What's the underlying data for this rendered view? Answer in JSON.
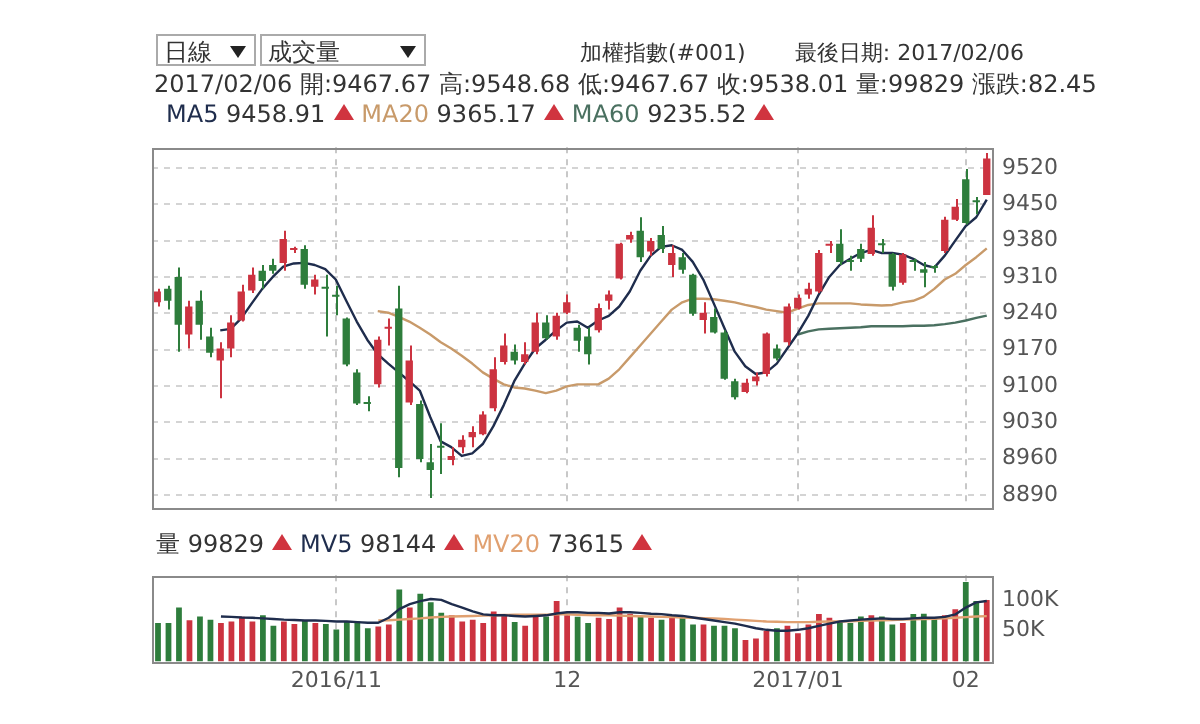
{
  "chart_data": [
    {
      "type": "candlestick",
      "annotations": [
        "日線",
        "成交量",
        "加權指數(#001)",
        "最後日期: 2017/02/06",
        "2017/02/06 開:9467.67 高:9548.68 低:9467.67 收:9538.01 量:99829 漲跌:82.45",
        "9458.91",
        "9365.17",
        "9235.52"
      ],
      "categories": [
        null,
        null,
        null,
        null,
        null,
        null,
        null,
        null,
        null,
        null,
        null,
        null,
        null,
        null,
        null,
        null,
        null,
        "2016/11",
        null,
        null,
        null,
        null,
        null,
        null,
        null,
        null,
        null,
        null,
        null,
        null,
        null,
        null,
        null,
        null,
        null,
        null,
        null,
        null,
        null,
        "12",
        null,
        null,
        null,
        null,
        null,
        null,
        null,
        null,
        null,
        null,
        null,
        null,
        null,
        null,
        null,
        null,
        null,
        null,
        null,
        null,
        null,
        "2017/01",
        null,
        null,
        null,
        null,
        null,
        null,
        null,
        null,
        null,
        null,
        null,
        null,
        null,
        null,
        null,
        "02",
        null,
        null
      ],
      "ohlc": [
        [
          9261,
          9287,
          9253,
          9282
        ],
        [
          9287,
          9293,
          9247,
          9264
        ],
        [
          9310,
          9328,
          9166,
          9218
        ],
        [
          9199,
          9264,
          9172,
          9253
        ],
        [
          9264,
          9284,
          9189,
          9218
        ],
        [
          9195,
          9212,
          9155,
          9164
        ],
        [
          9149,
          9184,
          9076,
          9172
        ],
        [
          9172,
          9236,
          9155,
          9222
        ],
        [
          9226,
          9295,
          9224,
          9282
        ],
        [
          9284,
          9328,
          9279,
          9314
        ],
        [
          9322,
          9333,
          9287,
          9302
        ],
        [
          9333,
          9345,
          9316,
          9322
        ],
        [
          9337,
          9399,
          9322,
          9383
        ],
        [
          9362,
          9368,
          9356,
          9363
        ],
        [
          9364,
          9371,
          9287,
          9295
        ],
        [
          9291,
          9314,
          9276,
          9305
        ],
        [
          9288,
          9314,
          9195,
          9287
        ],
        [
          9273,
          9293,
          9236,
          9272
        ],
        [
          9230,
          9232,
          9138,
          9141
        ],
        [
          9126,
          9132,
          9063,
          9066
        ],
        [
          9066,
          9080,
          9051,
          9065
        ],
        [
          9103,
          9195,
          9097,
          9189
        ],
        [
          9210,
          9230,
          9178,
          9213
        ],
        [
          9249,
          9293,
          8924,
          8942
        ],
        [
          9068,
          9178,
          9063,
          9149
        ],
        [
          9065,
          9072,
          8953,
          8959
        ],
        [
          8953,
          8988,
          8884,
          8938
        ],
        [
          8982,
          9028,
          8930,
          8981
        ],
        [
          8957,
          8982,
          8947,
          8965
        ],
        [
          8982,
          9005,
          8970,
          8996
        ],
        [
          9001,
          9022,
          8982,
          9011
        ],
        [
          9007,
          9051,
          9005,
          9045
        ],
        [
          9057,
          9155,
          9051,
          9132
        ],
        [
          9146,
          9201,
          9141,
          9178
        ],
        [
          9166,
          9180,
          9141,
          9149
        ],
        [
          9146,
          9184,
          9141,
          9161
        ],
        [
          9166,
          9241,
          9161,
          9222
        ],
        [
          9222,
          9236,
          9189,
          9192
        ],
        [
          9195,
          9241,
          9189,
          9235
        ],
        [
          9241,
          9276,
          9238,
          9261
        ],
        [
          9212,
          9218,
          9166,
          9187
        ],
        [
          9195,
          9212,
          9141,
          9161
        ],
        [
          9207,
          9259,
          9203,
          9250
        ],
        [
          9264,
          9284,
          9247,
          9276
        ],
        [
          9307,
          9376,
          9305,
          9374
        ],
        [
          9382,
          9397,
          9376,
          9391
        ],
        [
          9399,
          9425,
          9339,
          9348
        ],
        [
          9359,
          9385,
          9351,
          9379
        ],
        [
          9391,
          9408,
          9356,
          9364
        ],
        [
          9333,
          9371,
          9310,
          9356
        ],
        [
          9348,
          9356,
          9316,
          9324
        ],
        [
          9314,
          9316,
          9235,
          9239
        ],
        [
          9227,
          9261,
          9201,
          9241
        ],
        [
          9233,
          9249,
          9201,
          9203
        ],
        [
          9203,
          9207,
          9112,
          9114
        ],
        [
          9109,
          9114,
          9074,
          9078
        ],
        [
          9088,
          9114,
          9086,
          9106
        ],
        [
          9109,
          9126,
          9101,
          9118
        ],
        [
          9123,
          9203,
          9118,
          9201
        ],
        [
          9172,
          9180,
          9149,
          9153
        ],
        [
          9184,
          9259,
          9178,
          9253
        ],
        [
          9249,
          9276,
          9247,
          9270
        ],
        [
          9276,
          9299,
          9268,
          9287
        ],
        [
          9282,
          9362,
          9279,
          9356
        ],
        [
          9370,
          9379,
          9356,
          9371
        ],
        [
          9374,
          9402,
          9333,
          9339
        ],
        [
          9342,
          9351,
          9322,
          9339
        ],
        [
          9364,
          9374,
          9339,
          9345
        ],
        [
          9354,
          9429,
          9351,
          9405
        ],
        [
          9372,
          9383,
          9356,
          9371
        ],
        [
          9354,
          9356,
          9284,
          9291
        ],
        [
          9299,
          9356,
          9295,
          9353
        ],
        [
          9340,
          9345,
          9322,
          9339
        ],
        [
          9325,
          9339,
          9290,
          9318
        ],
        [
          9328,
          9333,
          9318,
          9327
        ],
        [
          9360,
          9426,
          9356,
          9420
        ],
        [
          9420,
          9460,
          9418,
          9445
        ],
        [
          9498,
          9518,
          9411,
          9414
        ],
        [
          9455,
          9464,
          9431,
          9454
        ],
        [
          9467.67,
          9548.68,
          9467.67,
          9538.01
        ]
      ],
      "colors": [
        "#cc3340",
        "#2e7d3c",
        "#2e7d3c",
        "#cc3340",
        "#2e7d3c",
        "#2e7d3c",
        "#cc3340",
        "#cc3340",
        "#cc3340",
        "#cc3340",
        "#2e7d3c",
        "#2e7d3c",
        "#cc3340",
        "#cc3340",
        "#2e7d3c",
        "#cc3340",
        "#2e7d3c",
        "#2e7d3c",
        "#2e7d3c",
        "#2e7d3c",
        "#2e7d3c",
        "#cc3340",
        "#cc3340",
        "#2e7d3c",
        "#cc3340",
        "#2e7d3c",
        "#2e7d3c",
        "#2e7d3c",
        "#cc3340",
        "#cc3340",
        "#cc3340",
        "#cc3340",
        "#cc3340",
        "#cc3340",
        "#2e7d3c",
        "#cc3340",
        "#cc3340",
        "#2e7d3c",
        "#cc3340",
        "#cc3340",
        "#2e7d3c",
        "#2e7d3c",
        "#cc3340",
        "#cc3340",
        "#cc3340",
        "#cc3340",
        "#2e7d3c",
        "#cc3340",
        "#2e7d3c",
        "#cc3340",
        "#2e7d3c",
        "#2e7d3c",
        "#cc3340",
        "#2e7d3c",
        "#2e7d3c",
        "#2e7d3c",
        "#cc3340",
        "#cc3340",
        "#cc3340",
        "#2e7d3c",
        "#cc3340",
        "#cc3340",
        "#cc3340",
        "#cc3340",
        "#cc3340",
        "#2e7d3c",
        "#2e7d3c",
        "#2e7d3c",
        "#cc3340",
        "#2e7d3c",
        "#2e7d3c",
        "#cc3340",
        "#2e7d3c",
        "#2e7d3c",
        "#2e7d3c",
        "#cc3340",
        "#cc3340",
        "#2e7d3c",
        "#2e7d3c",
        "#cc3340"
      ],
      "series": [
        {
          "type": "line",
          "name": "MA5",
          "color": "#1f2d4d",
          "values": [
            null,
            null,
            null,
            null,
            null,
            null,
            9207,
            9210,
            9230,
            9259,
            9287,
            9310,
            9330,
            9336,
            9337,
            9333,
            9325,
            9305,
            9264,
            9224,
            9189,
            9161,
            9143,
            9126,
            9109,
            9091,
            9040,
            8993,
            8982,
            8965,
            8970,
            8988,
            9022,
            9063,
            9109,
            9143,
            9172,
            9189,
            9207,
            9222,
            9224,
            9212,
            9226,
            9235,
            9253,
            9282,
            9322,
            9351,
            9368,
            9371,
            9362,
            9339,
            9305,
            9259,
            9212,
            9166,
            9138,
            9123,
            9126,
            9143,
            9172,
            9201,
            9235,
            9276,
            9310,
            9333,
            9345,
            9356,
            9362,
            9356,
            9356,
            9353,
            9345,
            9333,
            9328,
            9351,
            9380,
            9408,
            9425,
            9458.91
          ]
        },
        {
          "type": "line",
          "name": "MA20",
          "color": "#c89a6a",
          "values": [
            null,
            null,
            null,
            null,
            null,
            null,
            null,
            null,
            null,
            null,
            null,
            null,
            null,
            null,
            null,
            null,
            null,
            null,
            null,
            null,
            null,
            9244,
            9241,
            9233,
            9224,
            9212,
            9199,
            9184,
            9172,
            9158,
            9143,
            9126,
            9114,
            9103,
            9097,
            9095,
            9091,
            9086,
            9091,
            9099,
            9103,
            9103,
            9103,
            9114,
            9132,
            9155,
            9178,
            9201,
            9224,
            9247,
            9261,
            9268,
            9268,
            9267,
            9264,
            9261,
            9256,
            9252,
            9247,
            9244,
            9241,
            9249,
            9256,
            9259,
            9259,
            9259,
            9259,
            9257,
            9256,
            9255,
            9256,
            9261,
            9264,
            9272,
            9287,
            9305,
            9316,
            9333,
            9348,
            9365.17
          ]
        },
        {
          "type": "line",
          "name": "MA60",
          "color": "#4a7060",
          "values": [
            null,
            null,
            null,
            null,
            null,
            null,
            null,
            null,
            null,
            null,
            null,
            null,
            null,
            null,
            null,
            null,
            null,
            null,
            null,
            null,
            null,
            null,
            null,
            null,
            null,
            null,
            null,
            null,
            null,
            null,
            null,
            null,
            null,
            null,
            null,
            null,
            null,
            null,
            null,
            null,
            null,
            null,
            null,
            null,
            null,
            null,
            null,
            null,
            null,
            null,
            null,
            null,
            null,
            null,
            null,
            null,
            null,
            null,
            null,
            null,
            null,
            9199,
            9205,
            9209,
            9210,
            9211,
            9212,
            9213,
            9215,
            9215,
            9215,
            9215,
            9216,
            9216,
            9217,
            9219,
            9222,
            9226,
            9231,
            9235.52
          ]
        }
      ],
      "ylim": [
        8867,
        9560
      ],
      "yticks": [
        8890,
        8960,
        9030,
        9100,
        9170,
        9240,
        9310,
        9380,
        9450,
        9520
      ],
      "grid": true,
      "legend": "top left",
      "tick_labels": "y",
      "marker": "none"
    },
    {
      "type": "bar",
      "categories": [
        null,
        null,
        null,
        null,
        null,
        null,
        null,
        null,
        null,
        null,
        null,
        null,
        null,
        null,
        null,
        null,
        null,
        "2016/11",
        null,
        null,
        null,
        null,
        null,
        null,
        null,
        null,
        null,
        null,
        null,
        null,
        null,
        null,
        null,
        null,
        null,
        null,
        null,
        null,
        null,
        "12",
        null,
        null,
        null,
        null,
        null,
        null,
        null,
        null,
        null,
        null,
        null,
        null,
        null,
        null,
        null,
        null,
        null,
        null,
        null,
        null,
        null,
        "2017/01",
        null,
        null,
        null,
        null,
        null,
        null,
        null,
        null,
        null,
        null,
        null,
        null,
        null,
        null,
        null,
        "02",
        null,
        null
      ],
      "series": [
        {
          "type": "bar",
          "colors": [
            "#2e7d3c",
            "#2e7d3c",
            "#2e7d3c",
            "#cc3340",
            "#2e7d3c",
            "#2e7d3c",
            "#cc3340",
            "#cc3340",
            "#cc3340",
            "#cc3340",
            "#2e7d3c",
            "#2e7d3c",
            "#cc3340",
            "#cc3340",
            "#2e7d3c",
            "#cc3340",
            "#2e7d3c",
            "#2e7d3c",
            "#2e7d3c",
            "#2e7d3c",
            "#2e7d3c",
            "#cc3340",
            "#cc3340",
            "#2e7d3c",
            "#cc3340",
            "#2e7d3c",
            "#2e7d3c",
            "#2e7d3c",
            "#cc3340",
            "#cc3340",
            "#cc3340",
            "#cc3340",
            "#cc3340",
            "#cc3340",
            "#2e7d3c",
            "#cc3340",
            "#cc3340",
            "#2e7d3c",
            "#cc3340",
            "#cc3340",
            "#2e7d3c",
            "#2e7d3c",
            "#cc3340",
            "#cc3340",
            "#cc3340",
            "#cc3340",
            "#2e7d3c",
            "#cc3340",
            "#2e7d3c",
            "#cc3340",
            "#2e7d3c",
            "#2e7d3c",
            "#cc3340",
            "#2e7d3c",
            "#2e7d3c",
            "#2e7d3c",
            "#cc3340",
            "#cc3340",
            "#cc3340",
            "#2e7d3c",
            "#cc3340",
            "#cc3340",
            "#cc3340",
            "#cc3340",
            "#cc3340",
            "#2e7d3c",
            "#2e7d3c",
            "#2e7d3c",
            "#cc3340",
            "#2e7d3c",
            "#2e7d3c",
            "#cc3340",
            "#2e7d3c",
            "#2e7d3c",
            "#2e7d3c",
            "#cc3340",
            "#cc3340",
            "#2e7d3c",
            "#2e7d3c",
            "#cc3340"
          ],
          "values": [
            62500,
            62500,
            87500,
            67000,
            73000,
            68000,
            62500,
            65000,
            72500,
            65000,
            75000,
            58000,
            65000,
            61000,
            67000,
            62500,
            61000,
            52000,
            65000,
            65000,
            54000,
            57000,
            60000,
            117000,
            87500,
            110000,
            96000,
            79000,
            75000,
            65000,
            68000,
            62500,
            81000,
            77000,
            64000,
            58000,
            73000,
            73000,
            98000,
            75000,
            72500,
            62500,
            71000,
            69000,
            87500,
            77500,
            73000,
            71000,
            68000,
            75000,
            73000,
            60000,
            60000,
            58000,
            58000,
            54000,
            35000,
            37500,
            50000,
            54000,
            58000,
            46000,
            60000,
            77000,
            71000,
            65000,
            62500,
            73000,
            75000,
            73000,
            60000,
            62500,
            77000,
            77500,
            71000,
            75000,
            85000,
            129000,
            98000,
            99829
          ]
        },
        {
          "type": "line",
          "name": "MV5",
          "color": "#1f2d4d",
          "values": [
            null,
            null,
            null,
            null,
            null,
            null,
            73000,
            72500,
            71500,
            71000,
            70000,
            69000,
            68000,
            67500,
            66500,
            66500,
            66000,
            65000,
            65000,
            64000,
            63000,
            63000,
            71000,
            85000,
            93000,
            98000,
            101500,
            100000,
            93000,
            87500,
            81500,
            76500,
            75000,
            75000,
            74000,
            73000,
            74000,
            75000,
            78000,
            80000,
            80000,
            79000,
            79000,
            78000,
            80000,
            80000,
            79000,
            77500,
            77000,
            75000,
            74000,
            71500,
            69000,
            66500,
            64000,
            61500,
            58000,
            54000,
            51500,
            50000,
            50000,
            51500,
            54000,
            58000,
            61500,
            65000,
            66500,
            68000,
            69000,
            70000,
            69000,
            69000,
            70000,
            71000,
            71000,
            72500,
            76500,
            87500,
            96000,
            98144
          ]
        },
        {
          "type": "line",
          "name": "MV20",
          "color": "#e0a070",
          "values": [
            null,
            null,
            null,
            null,
            null,
            null,
            null,
            null,
            null,
            null,
            null,
            null,
            null,
            null,
            null,
            null,
            null,
            null,
            null,
            null,
            null,
            66500,
            67000,
            68000,
            69000,
            70000,
            71500,
            72500,
            73000,
            73500,
            74000,
            74500,
            75000,
            75500,
            76000,
            76000,
            76000,
            76000,
            76500,
            76500,
            76000,
            75500,
            75000,
            75000,
            74500,
            74000,
            73500,
            73000,
            72500,
            72000,
            71500,
            71000,
            70500,
            70000,
            69000,
            68000,
            67000,
            66000,
            65000,
            64500,
            64000,
            64000,
            64000,
            64500,
            65000,
            65000,
            65500,
            66000,
            66500,
            67000,
            67500,
            68000,
            68500,
            69000,
            69500,
            70000,
            71000,
            72000,
            73000,
            73615
          ]
        }
      ],
      "ylim": [
        0,
        140000
      ],
      "yticks": [
        {
          "value": 50000,
          "label": "50K"
        },
        {
          "value": 100000,
          "label": "100K"
        }
      ],
      "annotations": [
        "量 99829",
        "98144",
        "73615"
      ],
      "grid": "x",
      "legend": "top left",
      "marker": "none"
    }
  ]
}
